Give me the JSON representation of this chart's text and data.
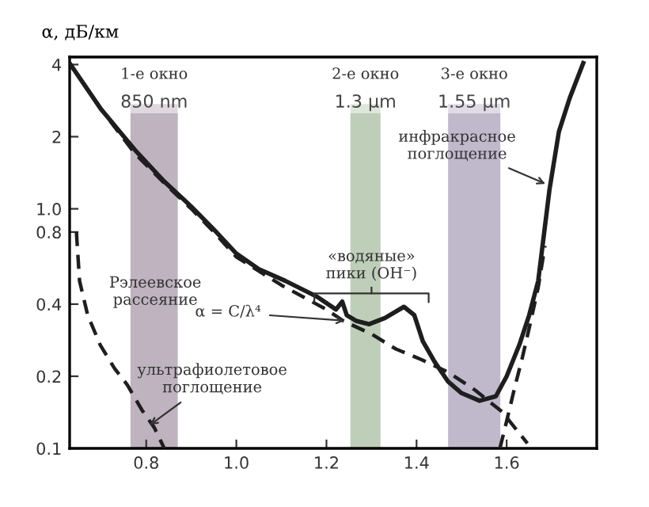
{
  "chart_data": {
    "type": "line",
    "ylabel": "α, дБ/км",
    "log": "y",
    "grid": false,
    "marker": "none",
    "xlim": [
      0.63,
      1.8
    ],
    "xticks": [
      {
        "value": 0.8,
        "label": "0.8"
      },
      {
        "value": 1.0,
        "label": "1.0"
      },
      {
        "value": 1.2,
        "label": "1.2"
      },
      {
        "value": 1.4,
        "label": "1.4"
      },
      {
        "value": 1.6,
        "label": "1.6"
      }
    ],
    "ylim": [
      0.1,
      4.3
    ],
    "yticks": [
      {
        "value": 0.1,
        "label": "0.1"
      },
      {
        "value": 0.2,
        "label": "0.2"
      },
      {
        "value": 0.4,
        "label": "0.4"
      },
      {
        "value": 0.8,
        "label": "0.8"
      },
      {
        "value": 1.0,
        "label": "1.0"
      },
      {
        "value": 2,
        "label": "2"
      },
      {
        "value": 4,
        "label": "4"
      }
    ],
    "series": [
      {
        "color": "#1e1e1e",
        "line_style": "solid",
        "x": [
          0.632,
          0.7,
          0.775,
          0.84,
          0.898,
          0.95,
          1.0,
          1.05,
          1.109,
          1.179,
          1.221,
          1.235,
          1.245,
          1.267,
          1.295,
          1.33,
          1.372,
          1.395,
          1.414,
          1.44,
          1.47,
          1.5,
          1.54,
          1.576,
          1.6,
          1.628,
          1.65,
          1.67,
          1.695,
          1.716,
          1.74,
          1.77
        ],
        "values": [
          4.0,
          2.6,
          1.76,
          1.3,
          1.03,
          0.82,
          0.65,
          0.56,
          0.5,
          0.43,
          0.38,
          0.41,
          0.36,
          0.34,
          0.33,
          0.35,
          0.39,
          0.36,
          0.28,
          0.23,
          0.19,
          0.17,
          0.158,
          0.165,
          0.2,
          0.27,
          0.36,
          0.5,
          1.2,
          2.1,
          2.9,
          4.06
        ]
      },
      {
        "color": "#1e1e1e",
        "line_style": "dashed",
        "x": [
          0.632,
          0.7,
          0.775,
          0.84,
          0.9,
          0.95,
          1.0,
          1.1,
          1.2,
          1.238,
          1.3,
          1.354,
          1.41,
          1.47,
          1.53,
          1.59,
          1.646
        ],
        "values": [
          4.0,
          2.6,
          1.7,
          1.28,
          1.0,
          0.8,
          0.63,
          0.48,
          0.38,
          0.34,
          0.3,
          0.26,
          0.235,
          0.208,
          0.175,
          0.142,
          0.105
        ]
      },
      {
        "color": "#1e1e1e",
        "line_style": "dashed",
        "x": [
          0.645,
          0.652,
          0.67,
          0.698,
          0.73,
          0.758,
          0.79,
          0.818,
          0.84
        ],
        "values": [
          0.8,
          0.5,
          0.36,
          0.27,
          0.215,
          0.184,
          0.145,
          0.122,
          0.1
        ]
      },
      {
        "color": "#1e1e1e",
        "line_style": "dashed",
        "x": [
          1.585,
          1.6,
          1.618,
          1.635,
          1.652,
          1.67,
          1.685
        ],
        "values": [
          0.1,
          0.13,
          0.18,
          0.24,
          0.33,
          0.47,
          0.7
        ]
      }
    ],
    "bands": [
      {
        "axis": "x",
        "from": 0.765,
        "to": 0.87,
        "label": "850 nm",
        "color": "#a99aaa"
      },
      {
        "axis": "x",
        "from": 1.253,
        "to": 1.32,
        "label": "1.3 μm",
        "color": "#a9bea2"
      },
      {
        "axis": "x",
        "from": 1.47,
        "to": 1.586,
        "label": "1.55 μm",
        "color": "#aba2bb"
      }
    ],
    "annotations": [
      "1-е окно",
      "2-е окно",
      "3-е окно",
      "Рэлеевское\nрассеяние",
      "«водяные»\nпики (ОН⁻)",
      {
        "text": "α = C/λ⁴",
        "x": 1.25,
        "y": 0.34
      },
      {
        "text": "ультрафиолетовое\nпоглощение",
        "x": 0.8,
        "y": 0.122
      },
      {
        "text": "инфракрасное\nпоглощение",
        "x": 1.695,
        "y": 1.25
      }
    ]
  }
}
